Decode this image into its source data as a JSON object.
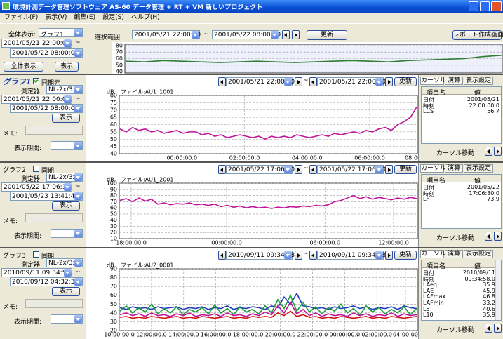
{
  "title_bar": {
    "title": "環境計測データ管理ソフトウェア AS-60 データ管理 + RT + VM 新しいプロジェクト"
  },
  "menu": [
    "ファイル(F)",
    "表示(V)",
    "編集(E)",
    "設定(S)",
    "ヘルプ(H)"
  ],
  "toolbar": {
    "overall_label": "全体表示:",
    "overall_select": "グラフ1",
    "start": "2001/05/21 22:00:00",
    "tilde": "~",
    "end": "2001/05/22 08:00:00",
    "buttons": [
      "全体表示",
      "表示"
    ],
    "range_label": "選択範囲:",
    "range_start": "2001/05/21 22:00:00",
    "range_end": "2001/05/22 08:00:00",
    "update": "更新",
    "report": "レポート作成画面へ"
  },
  "overview": {
    "ylim": [
      38,
      82
    ],
    "yticks": [
      40,
      50,
      60,
      70,
      80
    ],
    "color": "#2e7d32",
    "values": [
      56,
      55,
      57,
      56,
      55,
      54,
      55,
      56,
      55,
      54,
      55,
      56,
      57,
      56,
      55,
      57,
      58,
      59,
      60,
      63,
      65
    ]
  },
  "graphs": [
    {
      "name": "グラフ1",
      "selected": true,
      "sync": "同期元",
      "sync_checked": true,
      "device_label": "測定器:",
      "device": "NL-2x/3x",
      "start": "2001/05/21 22:00:00",
      "end": "2001/05/22 08:00:00",
      "show": "表示",
      "memo_label": "メモ:",
      "period_label": "表示期間:",
      "nav_start": "2001/05/21 22:00:00",
      "nav_end": "2001/05/21 22:00:00",
      "update": "更新",
      "unit": "dB",
      "file": "ファイル:AU1_1001",
      "ylim": [
        40,
        80
      ],
      "yticks": [
        40,
        45,
        50,
        55,
        60,
        65,
        70,
        75,
        80
      ],
      "xticks": [
        "00:00:00.0",
        "02:00:00.0",
        "04:00:00.0",
        "06:00:00.0",
        "08:00"
      ],
      "series": [
        {
          "color": "#c0139c",
          "values": [
            57,
            55,
            58,
            56,
            57,
            55,
            56,
            54,
            55,
            56,
            54,
            55,
            55,
            53,
            54,
            52,
            53,
            51,
            52,
            53,
            52,
            51,
            52,
            50,
            52,
            51,
            52,
            51,
            53,
            52,
            51,
            52,
            53,
            52,
            54,
            53,
            54,
            55,
            54,
            56,
            55,
            57,
            58,
            56,
            60,
            62,
            65,
            72
          ]
        }
      ],
      "tabs": [
        "カーソル",
        "演算",
        "表示設定"
      ],
      "table_header": [
        "項目名",
        "値"
      ],
      "rows": [
        [
          "日付",
          "2001/05/21"
        ],
        [
          "時刻",
          "22:00:00.0"
        ],
        [
          "LCS",
          56.7
        ]
      ],
      "cursor_move": "カーソル移動"
    },
    {
      "name": "グラフ2",
      "selected": false,
      "sync": "同期",
      "sync_checked": false,
      "device_label": "測定器:",
      "device": "NL-2x/3x",
      "start": "2001/05/22 17:06:30",
      "end": "2001/05/23 13:41:43",
      "show": "表示",
      "memo_label": "メモ:",
      "period_label": "表示期間:",
      "nav_start": "2001/05/22 17:06:30",
      "nav_end": "2001/05/22 17:06:30",
      "update": "更新",
      "unit": "dB",
      "file": "ファイル:AU1_2001",
      "ylim": [
        10,
        100
      ],
      "yticks": [
        10,
        20,
        30,
        40,
        50,
        60,
        70,
        80,
        90,
        100
      ],
      "xticks": [
        "18:00:00.0",
        "00:00:00.0",
        "06:00:00.0",
        "12:00:00.0"
      ],
      "series": [
        {
          "color": "#c0139c",
          "values": [
            72,
            75,
            70,
            76,
            71,
            74,
            66,
            68,
            65,
            67,
            66,
            68,
            65,
            66,
            64,
            66,
            62,
            64,
            61,
            63,
            60,
            62,
            60,
            61,
            59,
            61,
            60,
            62,
            61,
            63,
            62,
            64,
            63,
            65,
            70,
            72,
            76,
            80,
            75,
            78,
            74,
            77,
            75,
            73,
            76,
            74,
            77,
            75
          ]
        }
      ],
      "tabs": [
        "カーソル",
        "演算",
        "表示設定"
      ],
      "table_header": [
        "項目名",
        "値"
      ],
      "rows": [
        [
          "日付",
          "2001/05/22"
        ],
        [
          "時刻",
          "17:06:30.0"
        ],
        [
          "LF",
          73.9
        ]
      ],
      "cursor_move": "カーソル移動"
    },
    {
      "name": "グラフ3",
      "selected": false,
      "sync": "同期",
      "sync_checked": false,
      "device_label": "測定器:",
      "device": "NL-2x/3x",
      "start": "2010/09/11 09:34:58",
      "end": "2010/09/12 04:32:38",
      "show": "表示",
      "memo_label": "メモ:",
      "period_label": "表示期間:",
      "nav_start": "2010/09/11 09:34:58",
      "nav_end": "2010/09/11 09:34:58",
      "update": "更新",
      "unit": "dB",
      "file": "ファイル:AU2_0001",
      "ylim": [
        20,
        90
      ],
      "yticks": [
        20,
        30,
        40,
        50,
        60,
        70,
        80,
        90
      ],
      "xticks": [
        "10:00:00.0",
        "12:00:00.0",
        "14:00:00.0",
        "16:00:00.0",
        "18:00:00.0",
        "20:00:00.0",
        "22:00:00.0",
        "00:00:00.0",
        "02:00:00.0",
        "04:00:00"
      ],
      "series": [
        {
          "color": "#1f3fbf",
          "values": [
            46,
            44,
            47,
            45,
            46,
            44,
            47,
            45,
            46,
            47,
            44,
            46,
            45,
            47,
            44,
            46,
            45,
            48,
            44,
            46,
            45,
            47,
            46,
            44,
            48,
            46,
            58,
            50,
            62,
            48,
            47,
            45,
            46,
            44,
            47,
            45,
            46,
            48,
            45,
            47,
            44,
            46,
            45,
            47,
            44,
            48,
            46,
            45
          ]
        },
        {
          "color": "#1a9a3a",
          "values": [
            42,
            48,
            40,
            46,
            41,
            50,
            39,
            45,
            40,
            47,
            38,
            44,
            41,
            46,
            39,
            49,
            40,
            45,
            38,
            47,
            41,
            44,
            39,
            48,
            40,
            55,
            45,
            60,
            42,
            52,
            41,
            47,
            39,
            46,
            42,
            50,
            40,
            45,
            38,
            48,
            41,
            46,
            39,
            44,
            40,
            47,
            38,
            45
          ]
        },
        {
          "color": "#c0139c",
          "values": [
            38,
            40,
            37,
            39,
            36,
            40,
            37,
            38,
            36,
            39,
            37,
            40,
            36,
            38,
            37,
            39,
            36,
            40,
            37,
            38,
            36,
            39,
            37,
            41,
            38,
            48,
            40,
            52,
            39,
            44,
            37,
            40,
            36,
            39,
            37,
            38,
            36,
            40,
            37,
            39,
            36,
            38,
            37,
            40,
            36,
            39,
            37,
            38
          ]
        },
        {
          "color": "#d01010",
          "values": [
            35,
            36,
            34,
            35,
            34,
            36,
            35,
            34,
            35,
            36,
            34,
            35,
            34,
            36,
            35,
            34,
            35,
            36,
            34,
            35,
            34,
            36,
            35,
            36,
            35,
            40,
            37,
            42,
            36,
            38,
            35,
            36,
            34,
            35,
            34,
            36,
            35,
            34,
            35,
            36,
            34,
            35,
            34,
            36,
            35,
            34,
            35,
            36
          ]
        }
      ],
      "tabs": [
        "カーソル",
        "演算",
        "表示設定"
      ],
      "table_header": [
        "項目名",
        "値"
      ],
      "rows": [
        [
          "日付",
          "2010/09/11"
        ],
        [
          "時刻",
          "09:34:58.0"
        ],
        [
          "LAeq",
          35.9
        ],
        [
          "LAE",
          45.9
        ],
        [
          "LAFmax",
          46.8
        ],
        [
          "LAFmin",
          33.2
        ],
        [
          "L5",
          40.6
        ],
        [
          "L10",
          35.9
        ]
      ],
      "cursor_move": "カーソル移動"
    }
  ]
}
